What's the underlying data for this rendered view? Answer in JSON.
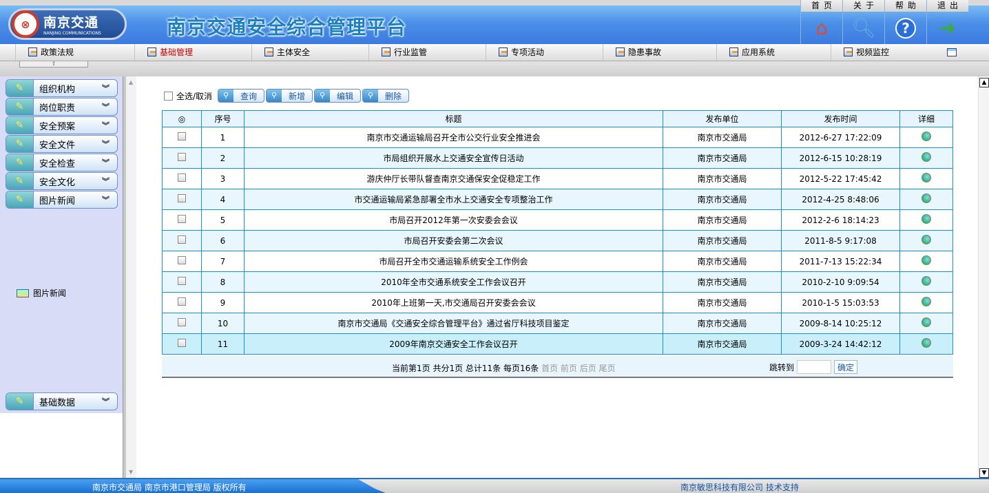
{
  "header": {
    "logo_cn": "南京交通",
    "logo_en": "NANJING COMMUNICATIONS",
    "title": "南京交通安全综合管理平台",
    "top_nav": [
      {
        "label": "首页",
        "icon": "home-icon"
      },
      {
        "label": "关于",
        "icon": "about-magnifier-icon"
      },
      {
        "label": "帮助",
        "icon": "help-icon"
      },
      {
        "label": "退出",
        "icon": "exit-arrow-icon"
      }
    ]
  },
  "menu": [
    {
      "label": "政策法规"
    },
    {
      "label": "基础管理",
      "active": true
    },
    {
      "label": "主体安全"
    },
    {
      "label": "行业监管"
    },
    {
      "label": "专项活动"
    },
    {
      "label": "隐患事故"
    },
    {
      "label": "应用系统"
    },
    {
      "label": "视频监控"
    }
  ],
  "sidebar": {
    "items": [
      {
        "label": "组织机构"
      },
      {
        "label": "岗位职责"
      },
      {
        "label": "安全预案"
      },
      {
        "label": "安全文件"
      },
      {
        "label": "安全检查"
      },
      {
        "label": "安全文化"
      },
      {
        "label": "图片新闻"
      }
    ],
    "sub_item": "图片新闻",
    "bottom_item": "基础数据"
  },
  "toolbar": {
    "select_all": "全选/取消",
    "query": "查询",
    "add": "新增",
    "edit": "编辑",
    "delete": "删除"
  },
  "table": {
    "columns": [
      "◎",
      "序号",
      "标题",
      "发布单位",
      "发布时间",
      "详细"
    ],
    "rows": [
      {
        "no": "1",
        "title": "南京市交通运输局召开全市公交行业安全推进会",
        "unit": "南京市交通局",
        "time": "2012-6-27 17:22:09"
      },
      {
        "no": "2",
        "title": "市局组织开展水上交通安全宣传日活动",
        "unit": "南京市交通局",
        "time": "2012-6-15 10:28:19"
      },
      {
        "no": "3",
        "title": "游庆仲厅长带队督查南京交通保安全促稳定工作",
        "unit": "南京市交通局",
        "time": "2012-5-22 17:45:42"
      },
      {
        "no": "4",
        "title": "市交通运输局紧急部署全市水上交通安全专项整治工作",
        "unit": "南京市交通局",
        "time": "2012-4-25 8:48:06"
      },
      {
        "no": "5",
        "title": "市局召开2012年第一次安委会会议",
        "unit": "南京市交通局",
        "time": "2012-2-6 18:14:23"
      },
      {
        "no": "6",
        "title": "市局召开安委会第二次会议",
        "unit": "南京市交通局",
        "time": "2011-8-5 9:17:08"
      },
      {
        "no": "7",
        "title": "市局召开全市交通运输系统安全工作例会",
        "unit": "南京市交通局",
        "time": "2011-7-13 15:22:34"
      },
      {
        "no": "8",
        "title": "2010年全市交通系统安全工作会议召开",
        "unit": "南京市交通局",
        "time": "2010-2-10 9:09:54"
      },
      {
        "no": "9",
        "title": "2010年上班第一天,市交通局召开安委会会议",
        "unit": "南京市交通局",
        "time": "2010-1-5 15:03:53"
      },
      {
        "no": "10",
        "title": "南京市交通局《交通安全综合管理平台》通过省厅科技项目鉴定",
        "unit": "南京市交通局",
        "time": "2009-8-14 10:25:12"
      },
      {
        "no": "11",
        "title": "2009年南京交通安全工作会议召开",
        "unit": "南京市交通局",
        "time": "2009-3-24 14:42:12"
      }
    ]
  },
  "pager": {
    "info": "当前第1页  共分1页  总计11条  每页16条 ",
    "links": "首页 前页 后页 尾页",
    "jump_label": "跳转到",
    "jump_value": "",
    "confirm": "确定"
  },
  "footer": {
    "left": "南京市交通局  南京市港口管理局  版权所有",
    "right": "南京敏思科技有限公司  技术支持"
  },
  "colors": {
    "accent": "#1e8fce",
    "active_menu": "#cc0000",
    "sidebar_bg": "#d8dcf6"
  }
}
